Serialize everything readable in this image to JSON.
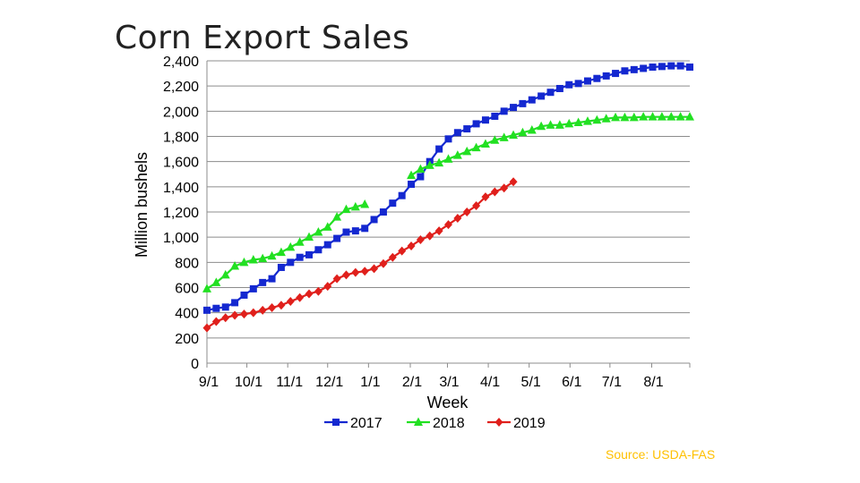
{
  "slide": {
    "title": "Corn Export Sales",
    "source": "Source: USDA-FAS"
  },
  "chart_data": {
    "type": "line",
    "title": "Corn Export Sales",
    "xlabel": "Week",
    "ylabel": "Million bushels",
    "ylim": [
      0,
      2400
    ],
    "yticks": [
      0,
      200,
      400,
      600,
      800,
      1000,
      1200,
      1400,
      1600,
      1800,
      2000,
      2200,
      2400
    ],
    "ytick_labels": [
      "0",
      "200",
      "400",
      "600",
      "800",
      "1,000",
      "1,200",
      "1,400",
      "1,600",
      "1,800",
      "2,000",
      "2,200",
      "2,400"
    ],
    "xlim": [
      0,
      52
    ],
    "x_unit": "weeks since 9/1",
    "xticks": [
      {
        "label": "9/1",
        "week": 0
      },
      {
        "label": "10/1",
        "week": 4.3
      },
      {
        "label": "11/1",
        "week": 8.7
      },
      {
        "label": "12/1",
        "week": 13
      },
      {
        "label": "1/1",
        "week": 17.4
      },
      {
        "label": "2/1",
        "week": 21.9
      },
      {
        "label": "3/1",
        "week": 25.9
      },
      {
        "label": "4/1",
        "week": 30.3
      },
      {
        "label": "5/1",
        "week": 34.7
      },
      {
        "label": "6/1",
        "week": 39.1
      },
      {
        "label": "7/1",
        "week": 43.4
      },
      {
        "label": "8/1",
        "week": 47.9
      }
    ],
    "grid": true,
    "legend_position": "bottom",
    "series": [
      {
        "name": "2017",
        "color": "#1428D0",
        "marker": "square",
        "x": [
          0,
          1,
          2,
          3,
          4,
          5,
          6,
          7,
          8,
          9,
          10,
          11,
          12,
          13,
          14,
          15,
          16,
          17,
          18,
          19,
          20,
          21,
          22,
          23,
          24,
          25,
          26,
          27,
          28,
          29,
          30,
          31,
          32,
          33,
          34,
          35,
          36,
          37,
          38,
          39,
          40,
          41,
          42,
          43,
          44,
          45,
          46,
          47,
          48,
          49,
          50,
          51,
          52
        ],
        "values": [
          420,
          435,
          445,
          480,
          540,
          590,
          640,
          670,
          760,
          800,
          840,
          860,
          900,
          940,
          990,
          1040,
          1050,
          1070,
          1140,
          1200,
          1270,
          1330,
          1420,
          1480,
          1600,
          1700,
          1780,
          1830,
          1860,
          1900,
          1930,
          1960,
          2000,
          2030,
          2060,
          2090,
          2120,
          2150,
          2180,
          2210,
          2220,
          2240,
          2260,
          2280,
          2300,
          2320,
          2330,
          2340,
          2350,
          2355,
          2360,
          2360,
          2350
        ]
      },
      {
        "name": "2018",
        "color": "#22E022",
        "marker": "triangle",
        "x": [
          0,
          1,
          2,
          3,
          4,
          5,
          6,
          7,
          8,
          9,
          10,
          11,
          12,
          13,
          14,
          15,
          16,
          17,
          null,
          22,
          23,
          24,
          25,
          26,
          27,
          28,
          29,
          30,
          31,
          32,
          33,
          34,
          35,
          36,
          37,
          38,
          39,
          40,
          41,
          42,
          43,
          44,
          45,
          46,
          47,
          48,
          49,
          50,
          51,
          52
        ],
        "values": [
          590,
          640,
          700,
          770,
          800,
          820,
          830,
          850,
          880,
          920,
          960,
          1000,
          1040,
          1080,
          1160,
          1220,
          1240,
          1260,
          null,
          1490,
          1540,
          1570,
          1590,
          1620,
          1650,
          1680,
          1710,
          1740,
          1770,
          1790,
          1810,
          1830,
          1850,
          1880,
          1890,
          1890,
          1900,
          1910,
          1920,
          1930,
          1940,
          1950,
          1950,
          1950,
          1955,
          1955,
          1955,
          1955,
          1955,
          1955
        ],
        "note": "series has a gap between early January and late January"
      },
      {
        "name": "2019",
        "color": "#E0201C",
        "marker": "diamond",
        "x": [
          0,
          1,
          2,
          3,
          4,
          5,
          6,
          7,
          8,
          9,
          10,
          11,
          12,
          13,
          14,
          15,
          16,
          17,
          18,
          19,
          20,
          21,
          22,
          23,
          24,
          25,
          26,
          27,
          28,
          29,
          30,
          31,
          32,
          33
        ],
        "values": [
          280,
          330,
          360,
          380,
          390,
          400,
          420,
          440,
          460,
          490,
          520,
          550,
          570,
          610,
          670,
          700,
          720,
          730,
          750,
          790,
          840,
          890,
          930,
          980,
          1010,
          1050,
          1100,
          1150,
          1200,
          1250,
          1320,
          1360,
          1390,
          1440
        ]
      }
    ]
  }
}
